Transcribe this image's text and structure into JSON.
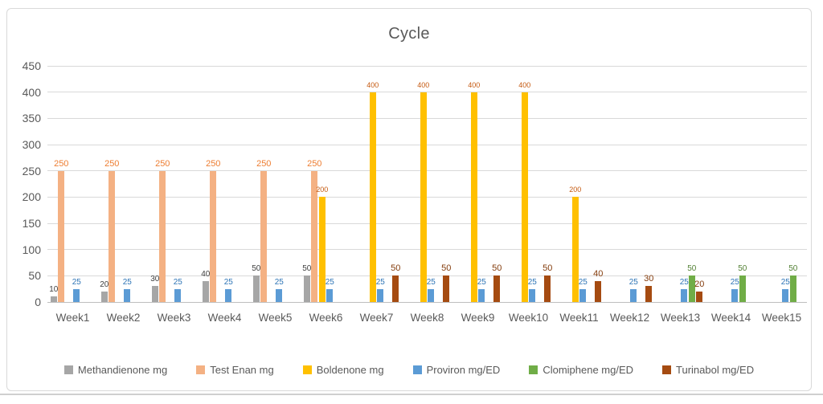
{
  "chart_data": {
    "type": "bar",
    "title": "Cycle",
    "categories": [
      "Week1",
      "Week2",
      "Week3",
      "Week4",
      "Week5",
      "Week6",
      "Week7",
      "Week8",
      "Week9",
      "Week10",
      "Week11",
      "Week12",
      "Week13",
      "Week14",
      "Week15"
    ],
    "series": [
      {
        "name": "Methandienone mg",
        "color": "#a6a6a6",
        "label_color": "#404040",
        "values": [
          10,
          20,
          30,
          40,
          50,
          50,
          0,
          0,
          0,
          0,
          0,
          0,
          0,
          0,
          0
        ]
      },
      {
        "name": "Test Enan mg",
        "color": "#f4b183",
        "label_color": "#ed7d31",
        "values": [
          250,
          250,
          250,
          250,
          250,
          250,
          0,
          0,
          0,
          0,
          0,
          0,
          0,
          0,
          0
        ]
      },
      {
        "name": "Boldenone mg",
        "color": "#ffc000",
        "label_color": "#c55a11",
        "values": [
          0,
          0,
          0,
          0,
          0,
          200,
          400,
          400,
          400,
          400,
          200,
          0,
          0,
          0,
          0
        ]
      },
      {
        "name": "Proviron mg/ED",
        "color": "#5b9bd5",
        "label_color": "#2e75b6",
        "values": [
          25,
          25,
          25,
          25,
          25,
          25,
          25,
          25,
          25,
          25,
          25,
          25,
          25,
          25,
          25
        ]
      },
      {
        "name": "Clomiphene mg/ED",
        "color": "#70ad47",
        "label_color": "#538135",
        "values": [
          0,
          0,
          0,
          0,
          0,
          0,
          0,
          0,
          0,
          0,
          0,
          0,
          50,
          50,
          50
        ]
      },
      {
        "name": "Turinabol mg/ED",
        "color": "#a54b11",
        "label_color": "#843c0c",
        "values": [
          0,
          0,
          0,
          0,
          0,
          0,
          50,
          50,
          50,
          50,
          40,
          30,
          20,
          0,
          0
        ]
      }
    ],
    "y_axis": {
      "min": 0,
      "max": 450,
      "step": 50,
      "ticks": [
        0,
        50,
        100,
        150,
        200,
        250,
        300,
        350,
        400,
        450
      ]
    },
    "ylim": [
      0,
      450
    ],
    "grid": true,
    "legend_position": "bottom",
    "colors": {
      "grid": "#d9d9d9",
      "axis_text": "#595959",
      "title_text": "#595959"
    }
  }
}
